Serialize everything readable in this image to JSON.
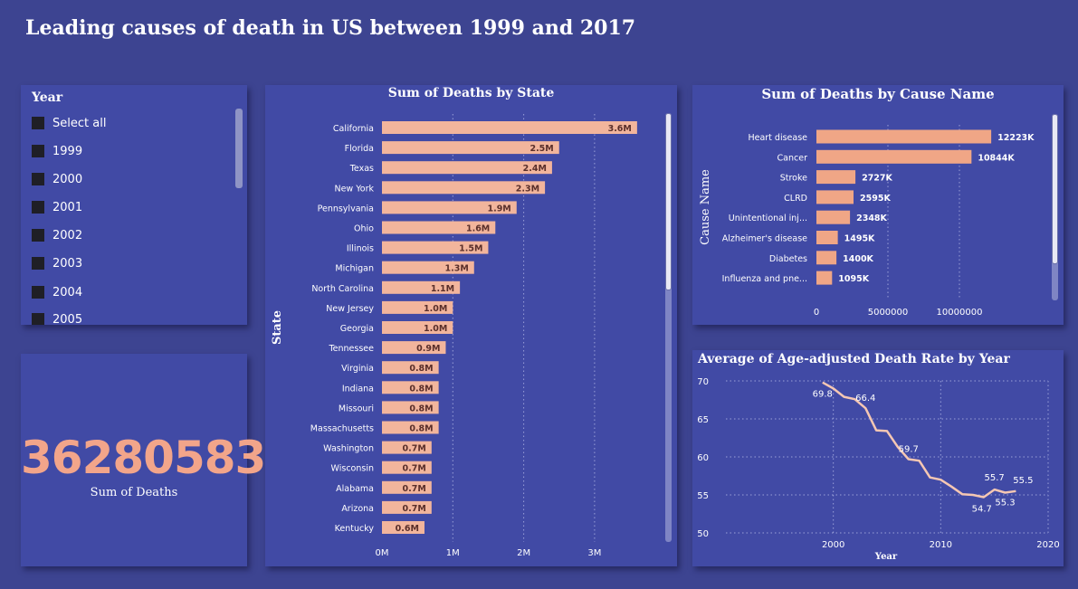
{
  "title": "Leading causes of death in US between 1999 and 2017",
  "slicer": {
    "header": "Year",
    "items": [
      "Select all",
      "1999",
      "2000",
      "2001",
      "2002",
      "2003",
      "2004",
      "2005"
    ]
  },
  "kpi": {
    "value": "36280583",
    "label": "Sum of Deaths"
  },
  "colors": {
    "background": "#3d4491",
    "card": "#414aa5",
    "bar": "#f2b59c",
    "bar_alt": "#f0a686",
    "line": "#f5c7b3",
    "accent_number": "#f2a58a"
  },
  "chart_data": [
    {
      "type": "bar",
      "orientation": "horizontal",
      "title": "Sum of Deaths by State",
      "ylabel": "State",
      "categories": [
        "California",
        "Florida",
        "Texas",
        "New York",
        "Pennsylvania",
        "Ohio",
        "Illinois",
        "Michigan",
        "North Carolina",
        "New Jersey",
        "Georgia",
        "Tennessee",
        "Virginia",
        "Indiana",
        "Missouri",
        "Massachusetts",
        "Washington",
        "Wisconsin",
        "Alabama",
        "Arizona",
        "Kentucky"
      ],
      "values": [
        3.6,
        2.5,
        2.4,
        2.3,
        1.9,
        1.6,
        1.5,
        1.3,
        1.1,
        1.0,
        1.0,
        0.9,
        0.8,
        0.8,
        0.8,
        0.8,
        0.7,
        0.7,
        0.7,
        0.7,
        0.6
      ],
      "data_labels": [
        "3.6M",
        "2.5M",
        "2.4M",
        "2.3M",
        "1.9M",
        "1.6M",
        "1.5M",
        "1.3M",
        "1.1M",
        "1.0M",
        "1.0M",
        "0.9M",
        "0.8M",
        "0.8M",
        "0.8M",
        "0.8M",
        "0.7M",
        "0.7M",
        "0.7M",
        "0.7M",
        "0.6M"
      ],
      "unit": "M",
      "xlim": [
        0,
        3.6
      ],
      "x_ticks": [
        0,
        1,
        2,
        3
      ],
      "x_tick_labels": [
        "0M",
        "1M",
        "2M",
        "3M"
      ]
    },
    {
      "type": "bar",
      "orientation": "horizontal",
      "title": "Sum of Deaths by Cause Name",
      "ylabel": "Cause Name",
      "categories": [
        "Heart disease",
        "Cancer",
        "Stroke",
        "CLRD",
        "Unintentional inj...",
        "Alzheimer's disease",
        "Diabetes",
        "Influenza and pne..."
      ],
      "values": [
        12223000,
        10844000,
        2727000,
        2595000,
        2348000,
        1495000,
        1400000,
        1095000
      ],
      "data_labels": [
        "12223K",
        "10844K",
        "2727K",
        "2595K",
        "2348K",
        "1495K",
        "1400K",
        "1095K"
      ],
      "xlim": [
        0,
        12500000
      ],
      "x_ticks": [
        0,
        5000000,
        10000000
      ],
      "x_tick_labels": [
        "0",
        "5000000",
        "10000000"
      ]
    },
    {
      "type": "line",
      "title": "Average of Age-adjusted Death Rate by Year",
      "xlabel": "Year",
      "x": [
        1999,
        2000,
        2001,
        2002,
        2003,
        2004,
        2005,
        2006,
        2007,
        2008,
        2009,
        2010,
        2011,
        2012,
        2013,
        2014,
        2015,
        2016,
        2017
      ],
      "values": [
        69.8,
        69.0,
        67.9,
        67.6,
        66.4,
        63.5,
        63.4,
        61.3,
        59.7,
        59.5,
        57.3,
        57.0,
        56.1,
        55.1,
        55.0,
        54.7,
        55.7,
        55.3,
        55.5
      ],
      "point_labels": [
        {
          "x": 1999,
          "label": "69.8"
        },
        {
          "x": 2003,
          "label": "66.4"
        },
        {
          "x": 2007,
          "label": "59.7"
        },
        {
          "x": 2014,
          "label": "54.7"
        },
        {
          "x": 2015,
          "label": "55.7"
        },
        {
          "x": 2016,
          "label": "55.3"
        },
        {
          "x": 2017,
          "label": "55.5"
        }
      ],
      "xlim": [
        1990,
        2020
      ],
      "ylim": [
        50,
        70
      ],
      "x_ticks": [
        2000,
        2010,
        2020
      ],
      "y_ticks": [
        50,
        55,
        60,
        65,
        70
      ]
    }
  ]
}
